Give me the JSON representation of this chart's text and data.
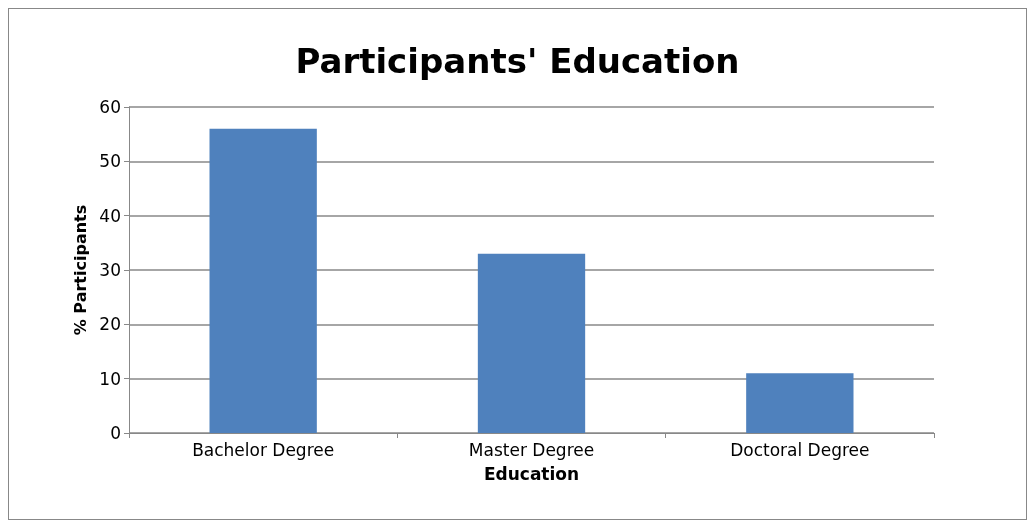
{
  "chart_data": {
    "type": "bar",
    "title": "Participants' Education",
    "xlabel": "Education",
    "ylabel": "% Participants",
    "categories": [
      "Bachelor Degree",
      "Master Degree",
      "Doctoral Degree"
    ],
    "values": [
      56,
      33,
      11
    ],
    "color": "#4f81bd",
    "ylim": [
      0,
      60
    ],
    "yticks": [
      0,
      10,
      20,
      30,
      40,
      50,
      60
    ],
    "grid": "y"
  }
}
